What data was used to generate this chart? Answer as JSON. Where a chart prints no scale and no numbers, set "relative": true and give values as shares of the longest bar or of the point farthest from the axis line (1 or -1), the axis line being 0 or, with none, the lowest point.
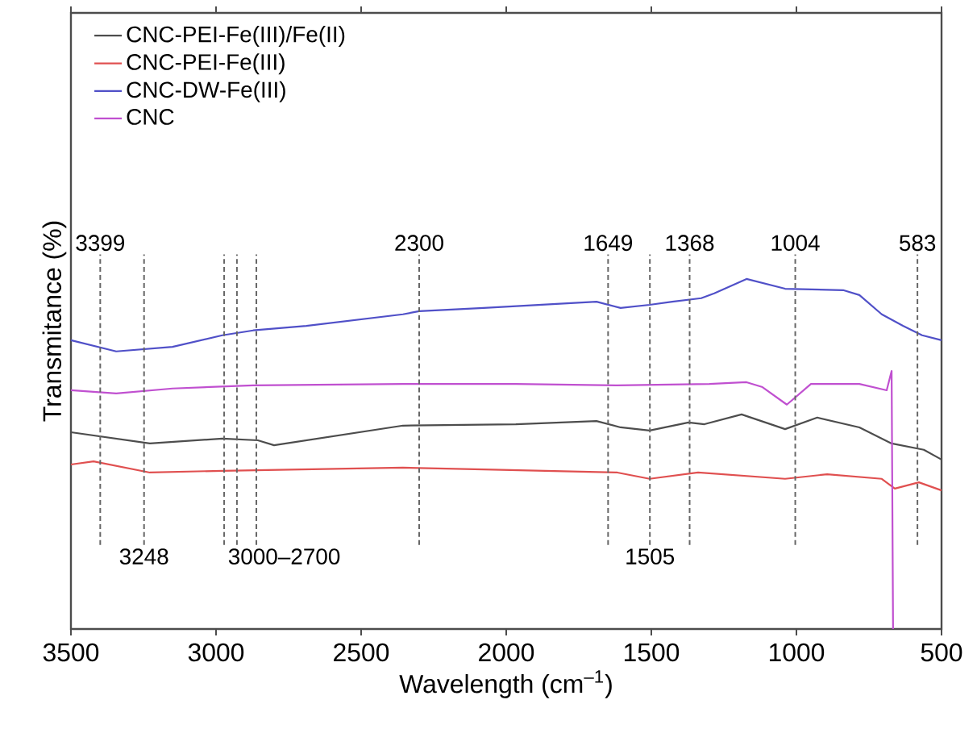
{
  "chart_data": {
    "type": "line",
    "relative": true,
    "xlabel": "Wavelength (cm$^{–1}$)",
    "ylabel": "Transmitance (%)",
    "xlim": [
      3500,
      500
    ],
    "xticks": [
      3500,
      3000,
      2500,
      2000,
      1500,
      1000,
      500
    ],
    "legend": "top left",
    "grid": false,
    "marker": "none",
    "line_style": "solid",
    "series": [
      {
        "name": "CNC-PEI-Fe(III)/Fe(II)",
        "color": "#4d4d4d",
        "x": [
          3500,
          3228,
          2978,
          2856,
          2800,
          2356,
          1967,
          1689,
          1606,
          1506,
          1372,
          1317,
          1189,
          1039,
          928,
          783,
          672,
          561,
          500
        ],
        "values": [
          0.562,
          0.53,
          0.544,
          0.539,
          0.525,
          0.581,
          0.585,
          0.594,
          0.576,
          0.567,
          0.59,
          0.585,
          0.613,
          0.571,
          0.604,
          0.576,
          0.53,
          0.512,
          0.484
        ]
      },
      {
        "name": "CNC-PEI-Fe(III)",
        "color": "#e05050",
        "x": [
          3500,
          3422,
          3228,
          2978,
          2356,
          2078,
          1617,
          1506,
          1339,
          1039,
          894,
          706,
          661,
          578,
          500
        ],
        "values": [
          0.47,
          0.479,
          0.447,
          0.452,
          0.461,
          0.456,
          0.447,
          0.429,
          0.447,
          0.429,
          0.442,
          0.429,
          0.401,
          0.419,
          0.396
        ]
      },
      {
        "name": "CNC-DW-Fe(III)",
        "color": "#5050c8",
        "x": [
          3500,
          3344,
          3150,
          2978,
          2872,
          2689,
          2356,
          2300,
          2078,
          1689,
          1606,
          1506,
          1428,
          1328,
          1283,
          1172,
          1039,
          839,
          783,
          706,
          633,
          567,
          500
        ],
        "values": [
          0.825,
          0.793,
          0.806,
          0.839,
          0.853,
          0.866,
          0.899,
          0.908,
          0.917,
          0.935,
          0.917,
          0.926,
          0.935,
          0.945,
          0.959,
          1.0,
          0.972,
          0.968,
          0.954,
          0.899,
          0.866,
          0.839,
          0.825
        ]
      },
      {
        "name": "CNC",
        "color": "#c050d0",
        "x": [
          3500,
          3344,
          3150,
          2872,
          2356,
          1967,
          1617,
          1300,
          1172,
          1117,
          1033,
          950,
          783,
          689,
          672,
          667
        ],
        "values": [
          0.682,
          0.673,
          0.687,
          0.696,
          0.7,
          0.7,
          0.696,
          0.7,
          0.705,
          0.691,
          0.641,
          0.7,
          0.7,
          0.682,
          0.737,
          0.0
        ]
      }
    ],
    "ref_lines": [
      {
        "axis": "x",
        "value": 3399,
        "line_style": "dashed",
        "color": "#666666",
        "label": "3399"
      },
      {
        "axis": "x",
        "value": 3248,
        "line_style": "dashed",
        "color": "#666666",
        "label": "3248"
      },
      {
        "axis": "x",
        "value": 2972,
        "line_style": "dashed",
        "color": "#666666"
      },
      {
        "axis": "x",
        "value": 2928,
        "line_style": "dashed",
        "color": "#666666"
      },
      {
        "axis": "x",
        "value": 2861,
        "line_style": "dashed",
        "color": "#666666"
      },
      {
        "axis": "x",
        "value": 2300,
        "line_style": "dashed",
        "color": "#666666",
        "label": "2300"
      },
      {
        "axis": "x",
        "value": 1649,
        "line_style": "dashed",
        "color": "#666666",
        "label": "1649"
      },
      {
        "axis": "x",
        "value": 1505,
        "line_style": "dashed",
        "color": "#666666",
        "label": "1505"
      },
      {
        "axis": "x",
        "value": 1368,
        "line_style": "dashed",
        "color": "#666666",
        "label": "1368"
      },
      {
        "axis": "x",
        "value": 1004,
        "line_style": "dashed",
        "color": "#666666",
        "label": "1004"
      },
      {
        "axis": "x",
        "value": 583,
        "line_style": "dashed",
        "color": "#666666",
        "label": "583"
      }
    ],
    "annotations": [
      "3000–2700"
    ]
  }
}
